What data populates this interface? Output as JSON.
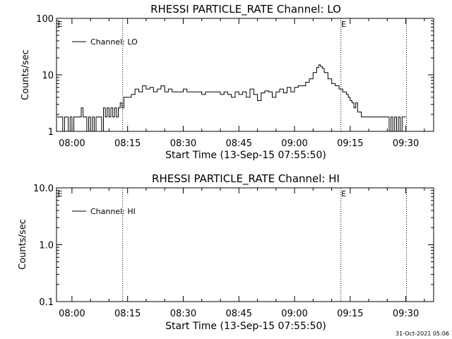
{
  "footer_timestamp": "31-Oct-2021 05:06",
  "chart_data": [
    {
      "type": "line",
      "title": "RHESSI PARTICLE_RATE Channel: LO",
      "xlabel": "Start Time (13-Sep-15 07:55:50)",
      "ylabel": "Counts/sec",
      "y_scale": "log",
      "ylim": [
        1,
        100
      ],
      "y_ticks": [
        "1",
        "10",
        "100"
      ],
      "xlim": [
        "07:55:50",
        "09:37:30"
      ],
      "x_ticks": [
        "08:00",
        "08:15",
        "08:30",
        "08:45",
        "09:00",
        "09:15",
        "09:30"
      ],
      "grid": false,
      "legend_position": "top-left",
      "vertical_markers": [
        "08:13:40",
        "09:12:30",
        "09:30:10"
      ],
      "marker_label": "E",
      "series": [
        {
          "name": "Channel: LO",
          "x": [
            "07:56:00",
            "07:57:00",
            "07:57:30",
            "07:58:00",
            "07:58:30",
            "07:59:00",
            "07:59:30",
            "08:00:00",
            "08:00:30",
            "08:01:00",
            "08:01:30",
            "08:02:00",
            "08:02:30",
            "08:03:00",
            "08:03:30",
            "08:04:00",
            "08:04:30",
            "08:05:00",
            "08:05:30",
            "08:06:00",
            "08:06:30",
            "08:07:00",
            "08:07:30",
            "08:08:00",
            "08:08:30",
            "08:09:00",
            "08:09:30",
            "08:10:00",
            "08:10:30",
            "08:11:00",
            "08:11:30",
            "08:12:00",
            "08:12:30",
            "08:13:00",
            "08:13:30",
            "08:14:00",
            "08:15:00",
            "08:16:00",
            "08:17:00",
            "08:18:00",
            "08:19:00",
            "08:20:00",
            "08:21:00",
            "08:22:00",
            "08:23:00",
            "08:24:00",
            "08:25:00",
            "08:26:00",
            "08:27:00",
            "08:28:00",
            "08:29:00",
            "08:30:00",
            "08:31:00",
            "08:32:00",
            "08:33:00",
            "08:34:00",
            "08:35:00",
            "08:36:00",
            "08:37:00",
            "08:38:00",
            "08:39:00",
            "08:40:00",
            "08:41:00",
            "08:42:00",
            "08:43:00",
            "08:44:00",
            "08:45:00",
            "08:46:00",
            "08:47:00",
            "08:48:00",
            "08:49:00",
            "08:50:00",
            "08:51:00",
            "08:52:00",
            "08:53:00",
            "08:54:00",
            "08:55:00",
            "08:56:00",
            "08:57:00",
            "08:58:00",
            "08:59:00",
            "09:00:00",
            "09:01:00",
            "09:02:00",
            "09:03:00",
            "09:04:00",
            "09:05:00",
            "09:06:00",
            "09:06:30",
            "09:07:00",
            "09:07:30",
            "09:08:00",
            "09:09:00",
            "09:10:00",
            "09:11:00",
            "09:12:00",
            "09:13:00",
            "09:14:00",
            "09:14:30",
            "09:15:00",
            "09:15:30",
            "09:16:00",
            "09:16:30",
            "09:17:00",
            "09:18:00",
            "09:20:00",
            "09:22:00",
            "09:24:00",
            "09:25:00",
            "09:25:30",
            "09:26:00",
            "09:26:30",
            "09:27:00",
            "09:27:30",
            "09:28:00",
            "09:28:30",
            "09:29:00",
            "09:29:30",
            "09:30:00"
          ],
          "y": [
            1.8,
            1.8,
            1.0,
            1.8,
            1.8,
            1.0,
            1.8,
            1.0,
            1.8,
            1.8,
            1.8,
            1.8,
            2.6,
            1.8,
            1.8,
            1.0,
            1.8,
            1.0,
            1.8,
            1.0,
            1.8,
            1.8,
            1.8,
            1.0,
            2.6,
            1.8,
            2.6,
            1.8,
            2.6,
            1.8,
            2.6,
            1.8,
            2.6,
            3.2,
            2.6,
            4.0,
            4.0,
            4.5,
            5.6,
            5.0,
            6.4,
            5.6,
            6.0,
            5.0,
            5.6,
            6.4,
            5.0,
            5.6,
            5.0,
            5.0,
            5.0,
            5.6,
            5.0,
            5.0,
            5.0,
            5.0,
            4.5,
            5.0,
            5.0,
            5.0,
            5.0,
            4.5,
            5.0,
            4.5,
            4.0,
            5.0,
            4.5,
            5.0,
            4.0,
            5.6,
            4.5,
            3.5,
            4.8,
            5.2,
            5.0,
            4.0,
            5.0,
            5.6,
            4.8,
            6.0,
            5.0,
            6.0,
            6.4,
            6.4,
            7.4,
            8.5,
            11.0,
            13.5,
            15.0,
            14.0,
            13.0,
            11.0,
            8.5,
            7.0,
            6.4,
            5.6,
            5.0,
            4.5,
            4.0,
            3.5,
            3.2,
            2.6,
            3.2,
            2.2,
            1.8,
            1.8,
            1.8,
            1.8,
            1.8,
            1.0,
            1.8,
            1.0,
            1.8,
            1.0,
            1.8,
            1.0,
            1.8,
            1.8,
            1.8
          ]
        }
      ]
    },
    {
      "type": "line",
      "title": "RHESSI PARTICLE_RATE Channel: HI",
      "xlabel": "Start Time (13-Sep-15 07:55:50)",
      "ylabel": "Counts/sec",
      "y_scale": "log",
      "ylim": [
        0.1,
        10
      ],
      "y_ticks": [
        "0.1",
        "1.0",
        "10.0"
      ],
      "xlim": [
        "07:55:50",
        "09:37:30"
      ],
      "x_ticks": [
        "08:00",
        "08:15",
        "08:30",
        "08:45",
        "09:00",
        "09:15",
        "09:30"
      ],
      "grid": false,
      "legend_position": "top-left",
      "vertical_markers": [
        "08:13:40",
        "09:12:30",
        "09:30:10"
      ],
      "marker_label": "E",
      "series": [
        {
          "name": "Channel: HI",
          "x": [],
          "y": []
        }
      ]
    }
  ]
}
